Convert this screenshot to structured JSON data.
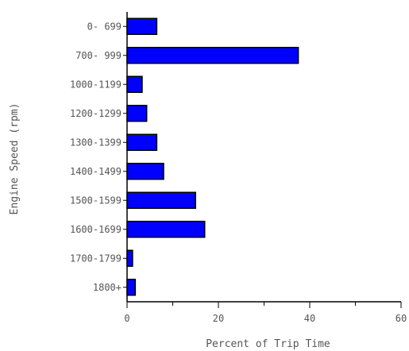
{
  "chart_data": {
    "type": "bar",
    "orientation": "horizontal",
    "title": "",
    "xlabel": "Percent of Trip Time",
    "ylabel": "Engine Speed (rpm)",
    "categories": [
      "0- 699",
      "700- 999",
      "1000-1199",
      "1200-1299",
      "1300-1399",
      "1400-1499",
      "1500-1599",
      "1600-1699",
      "1700-1799",
      "1800+"
    ],
    "values": [
      6.5,
      37.5,
      3.3,
      4.3,
      6.5,
      8.0,
      15.0,
      17.0,
      1.2,
      1.8
    ],
    "xlim": [
      0,
      60
    ],
    "xticks": [
      "0",
      "20",
      "40",
      "60"
    ],
    "grid": false,
    "bar_color": "#0000ff",
    "bar_edge_color": "#000000"
  }
}
